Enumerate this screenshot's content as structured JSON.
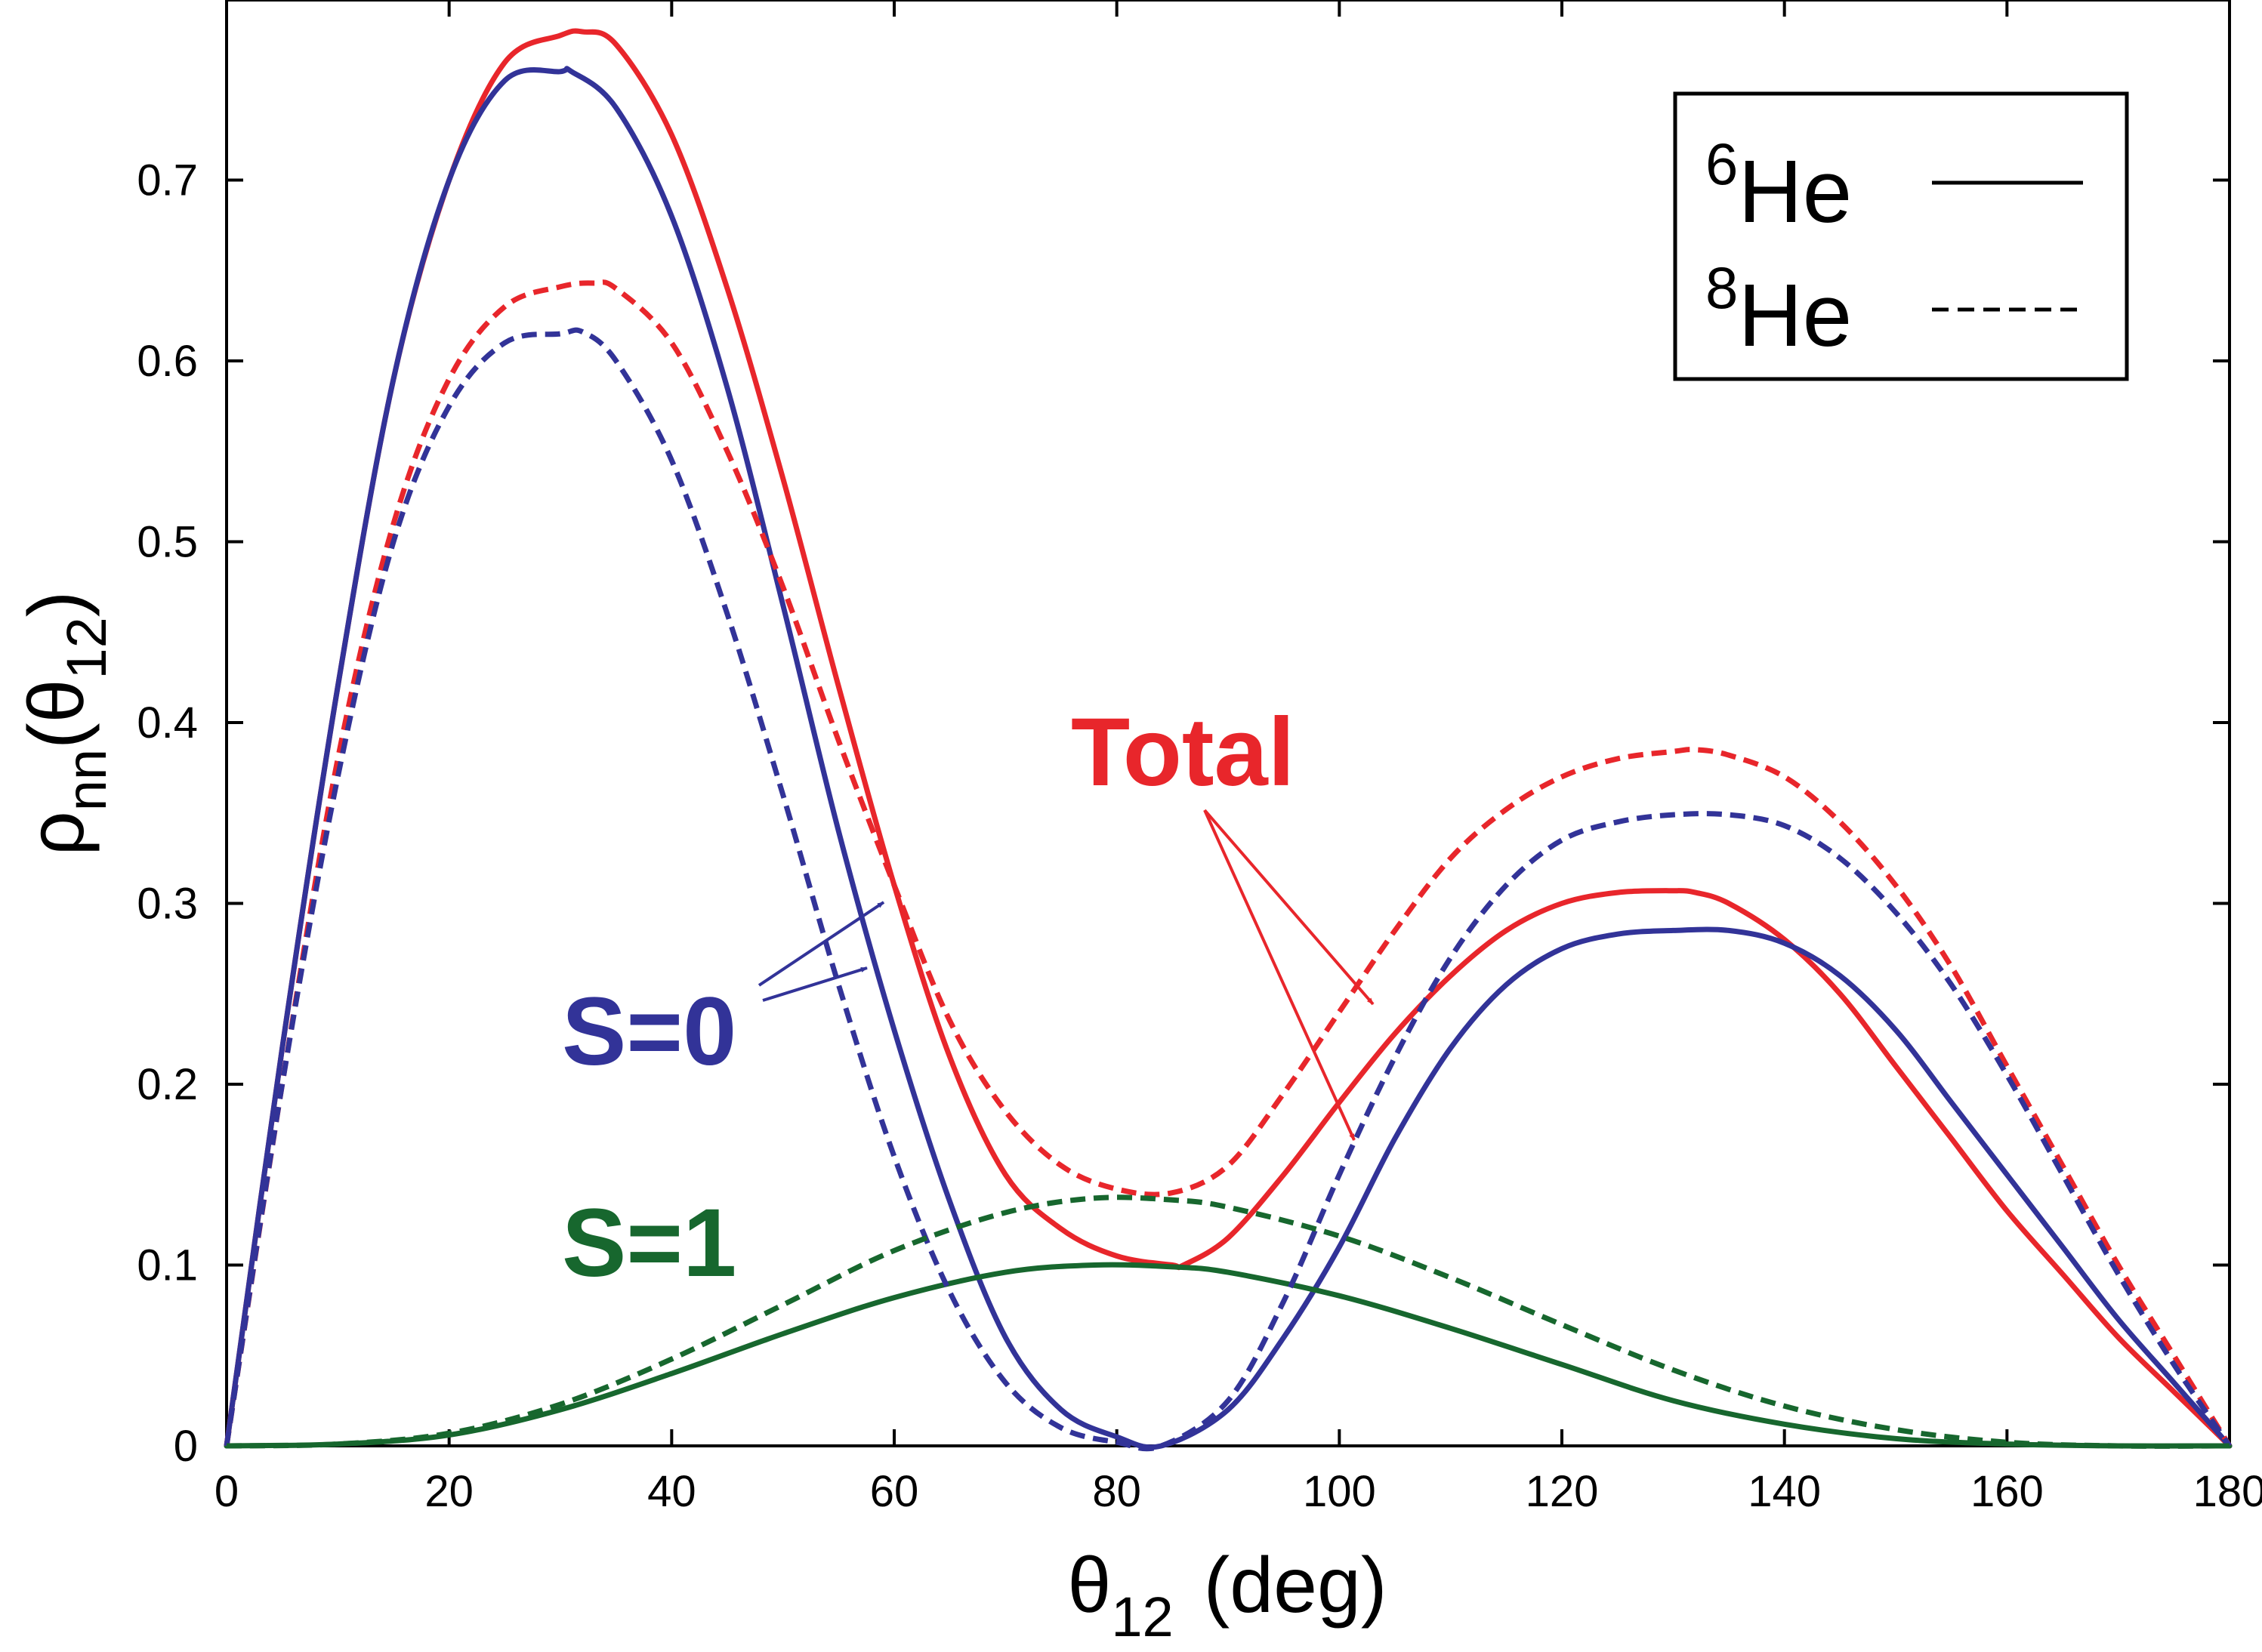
{
  "chart_data": {
    "type": "line",
    "xlabel": "θ",
    "xlabel_sub": "12",
    "xlabel_unit": "(deg)",
    "ylabel_main": "ρ",
    "ylabel_sub1": "nn",
    "ylabel_open": "(θ",
    "ylabel_sub2": "12",
    "ylabel_close": ")",
    "xlim": [
      0,
      180
    ],
    "ylim": [
      0,
      0.8
    ],
    "xticks": [
      0,
      20,
      40,
      60,
      80,
      100,
      120,
      140,
      160,
      180
    ],
    "xtick_labels": [
      "0",
      "20",
      "40",
      "60",
      "80",
      "100",
      "120",
      "140",
      "160",
      "180"
    ],
    "yticks": [
      0,
      0.1,
      0.2,
      0.3,
      0.4,
      0.5,
      0.6,
      0.7
    ],
    "ytick_labels": [
      "0",
      "0.1",
      "0.2",
      "0.3",
      "0.4",
      "0.5",
      "0.6",
      "0.7"
    ],
    "grid": false,
    "legend": {
      "placement": "top-right",
      "entries": [
        {
          "mass": "6",
          "element": "He",
          "style": "solid"
        },
        {
          "mass": "8",
          "element": "He",
          "style": "dashed"
        }
      ]
    },
    "annotations": [
      {
        "text": "Total",
        "color": "#e8262b"
      },
      {
        "text": "S=0",
        "color": "#323398"
      },
      {
        "text": "S=1",
        "color": "#17672e"
      }
    ],
    "colors": {
      "total": "#e8262b",
      "s0": "#323398",
      "s1": "#17672e"
    },
    "series": [
      {
        "group": "Total",
        "nucleus": "6He",
        "style": "solid",
        "color": "#e8262b",
        "x": [
          0,
          5,
          10,
          15,
          20,
          25,
          30,
          32,
          35,
          40,
          45,
          50,
          55,
          60,
          65,
          70,
          75,
          80,
          85,
          86,
          90,
          95,
          100,
          105,
          110,
          115,
          120,
          125,
          130,
          132,
          135,
          140,
          145,
          150,
          155,
          160,
          165,
          170,
          175,
          180
        ],
        "y": [
          0,
          0.22,
          0.42,
          0.59,
          0.7,
          0.765,
          0.78,
          0.782,
          0.775,
          0.725,
          0.64,
          0.535,
          0.42,
          0.31,
          0.215,
          0.15,
          0.12,
          0.105,
          0.1,
          0.1,
          0.115,
          0.15,
          0.19,
          0.228,
          0.26,
          0.285,
          0.3,
          0.306,
          0.307,
          0.306,
          0.3,
          0.28,
          0.25,
          0.21,
          0.17,
          0.13,
          0.095,
          0.06,
          0.03,
          0
        ]
      },
      {
        "group": "S=0",
        "nucleus": "6He",
        "style": "solid",
        "color": "#323398",
        "x": [
          0,
          5,
          10,
          15,
          20,
          25,
          30,
          31,
          35,
          40,
          45,
          50,
          55,
          60,
          65,
          70,
          75,
          80,
          84,
          90,
          95,
          100,
          105,
          110,
          115,
          120,
          125,
          130,
          135,
          140,
          145,
          150,
          155,
          160,
          165,
          170,
          175,
          180
        ],
        "y": [
          0,
          0.22,
          0.42,
          0.59,
          0.7,
          0.755,
          0.76,
          0.76,
          0.74,
          0.68,
          0.585,
          0.465,
          0.34,
          0.23,
          0.135,
          0.06,
          0.02,
          0.005,
          0,
          0.02,
          0.06,
          0.11,
          0.17,
          0.22,
          0.255,
          0.275,
          0.283,
          0.285,
          0.285,
          0.278,
          0.26,
          0.23,
          0.19,
          0.15,
          0.11,
          0.07,
          0.035,
          0
        ]
      },
      {
        "group": "S=1",
        "nucleus": "6He",
        "style": "solid",
        "color": "#17672e",
        "x": [
          0,
          10,
          20,
          30,
          40,
          50,
          60,
          70,
          78,
          85,
          90,
          100,
          110,
          120,
          130,
          140,
          150,
          160,
          170,
          180
        ],
        "y": [
          0,
          0.001,
          0.006,
          0.02,
          0.04,
          0.062,
          0.082,
          0.096,
          0.1,
          0.099,
          0.096,
          0.083,
          0.065,
          0.045,
          0.025,
          0.012,
          0.004,
          0.001,
          0,
          0
        ]
      },
      {
        "group": "Total",
        "nucleus": "8He",
        "style": "dashed",
        "color": "#e8262b",
        "x": [
          0,
          5,
          10,
          15,
          20,
          25,
          30,
          33,
          35,
          40,
          45,
          50,
          55,
          60,
          65,
          70,
          75,
          80,
          85,
          90,
          95,
          100,
          105,
          110,
          115,
          120,
          125,
          130,
          132,
          135,
          140,
          145,
          150,
          155,
          160,
          165,
          170,
          175,
          180
        ],
        "y": [
          0,
          0.2,
          0.38,
          0.51,
          0.59,
          0.63,
          0.641,
          0.643,
          0.64,
          0.61,
          0.55,
          0.475,
          0.39,
          0.31,
          0.235,
          0.185,
          0.155,
          0.142,
          0.14,
          0.155,
          0.195,
          0.24,
          0.285,
          0.325,
          0.352,
          0.37,
          0.38,
          0.384,
          0.385,
          0.382,
          0.37,
          0.345,
          0.31,
          0.265,
          0.21,
          0.155,
          0.1,
          0.05,
          0
        ]
      },
      {
        "group": "S=0",
        "nucleus": "8He",
        "style": "dashed",
        "color": "#323398",
        "x": [
          0,
          5,
          10,
          15,
          20,
          25,
          30,
          32,
          35,
          40,
          45,
          50,
          55,
          60,
          65,
          70,
          75,
          80,
          84,
          90,
          95,
          100,
          105,
          110,
          115,
          120,
          125,
          130,
          135,
          140,
          145,
          150,
          155,
          160,
          165,
          170,
          175,
          180
        ],
        "y": [
          0,
          0.2,
          0.37,
          0.5,
          0.575,
          0.61,
          0.615,
          0.616,
          0.6,
          0.545,
          0.46,
          0.36,
          0.255,
          0.16,
          0.085,
          0.035,
          0.01,
          0.002,
          0,
          0.025,
          0.08,
          0.15,
          0.215,
          0.27,
          0.31,
          0.335,
          0.345,
          0.349,
          0.349,
          0.343,
          0.325,
          0.295,
          0.255,
          0.205,
          0.15,
          0.095,
          0.045,
          0
        ]
      },
      {
        "group": "S=1",
        "nucleus": "8He",
        "style": "dashed",
        "color": "#17672e",
        "x": [
          0,
          10,
          20,
          30,
          40,
          50,
          60,
          70,
          78,
          85,
          90,
          100,
          110,
          120,
          130,
          140,
          150,
          160,
          170,
          180
        ],
        "y": [
          0,
          0.001,
          0.007,
          0.023,
          0.048,
          0.078,
          0.108,
          0.129,
          0.137,
          0.136,
          0.132,
          0.116,
          0.093,
          0.067,
          0.042,
          0.022,
          0.009,
          0.002,
          0,
          0
        ]
      }
    ]
  }
}
